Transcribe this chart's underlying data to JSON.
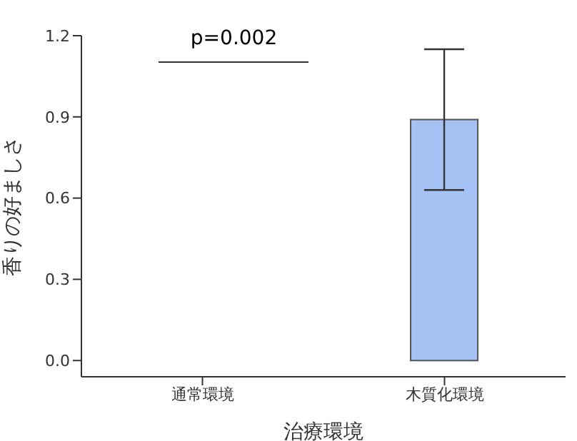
{
  "chart_data": {
    "type": "bar",
    "xlabel": "治療環境",
    "ylabel": "香りの好ましさ",
    "categories": [
      "通常環境",
      "木質化環境"
    ],
    "values": [
      0,
      0.89
    ],
    "colors": [
      "#a4c2f4",
      "#a4c2f4"
    ],
    "errors": [
      null,
      [
        0.63,
        1.15
      ]
    ],
    "ylim": [
      -0.06,
      1.2
    ],
    "yticks": [
      {
        "value": 0,
        "label": "0.0"
      },
      0.3,
      0.6,
      0.9,
      1.2
    ],
    "annotations": [
      "p=0.002"
    ],
    "grid": false,
    "legend": false
  }
}
